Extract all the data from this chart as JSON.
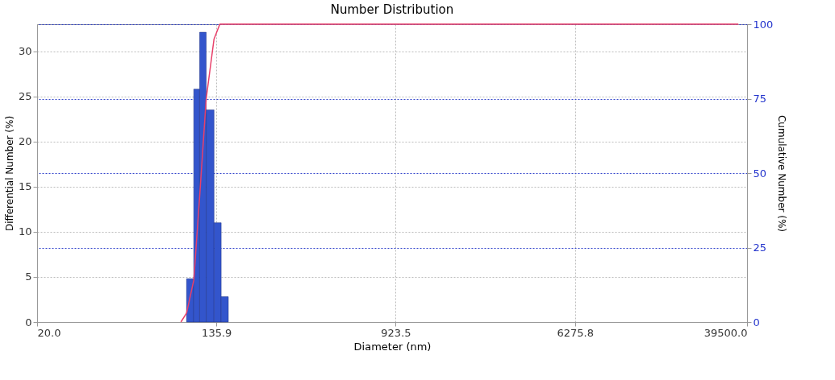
{
  "chart_data": {
    "type": "histogram",
    "title": "Number Distribution",
    "xlabel": "Diameter (nm)",
    "ylabel": "Differential Number (%)",
    "y2label": "Cumulative Number (%)",
    "bins": [
      98.8,
      106.7,
      113.6,
      121.9,
      132.5,
      143.0,
      154.4
    ],
    "values": [
      4.8,
      25.8,
      32.1,
      23.5,
      11.0,
      2.8
    ],
    "color": "#3355cc",
    "series": [
      {
        "type": "line",
        "axis": "y2",
        "color": "#e8406a",
        "x": [
          93,
          98.8,
          106.7,
          113.6,
          121.9,
          132.5,
          141,
          36000
        ],
        "values": [
          0,
          3,
          14,
          42,
          75,
          95,
          100,
          100
        ]
      }
    ],
    "log": "x",
    "xlim": [
      20,
      39500
    ],
    "xticks": [
      {
        "value": 20,
        "label": "20.0"
      },
      135.9,
      923.5,
      6275.8,
      {
        "value": 39500,
        "label": "39500.0"
      }
    ],
    "ylim": [
      0,
      33
    ],
    "yticks": [
      0,
      5,
      10,
      15,
      20,
      25,
      30
    ],
    "y2lim": [
      0,
      100
    ],
    "y2ticks": [
      0,
      25,
      50,
      75,
      100
    ],
    "grid": true
  }
}
